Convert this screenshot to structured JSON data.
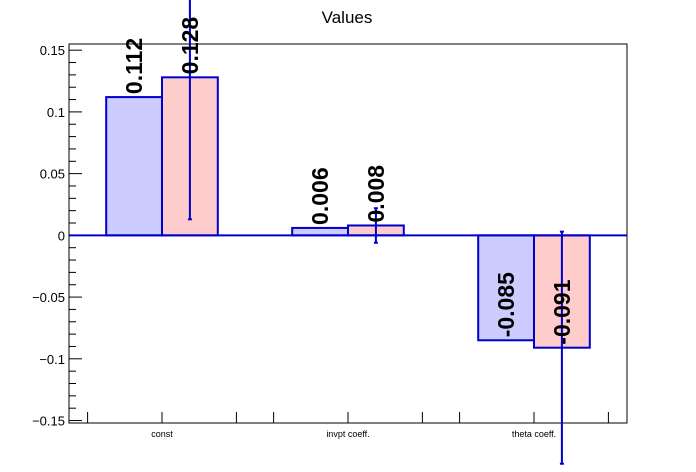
{
  "chart_data": {
    "type": "bar",
    "title": "Values",
    "xlabel": "",
    "ylabel": "",
    "categories": [
      "const",
      "invpt coeff.",
      "theta coeff."
    ],
    "ylim": [
      -0.152,
      0.155
    ],
    "yticks": [
      -0.15,
      -0.1,
      -0.05,
      0,
      0.05,
      0.1,
      0.15
    ],
    "ytick_labels": [
      "−0.15",
      "−0.1",
      "−0.05",
      "0",
      "0.05",
      "0.1",
      "0.15"
    ],
    "grid": false,
    "series": [
      {
        "values": [
          0.112,
          0.006,
          -0.085
        ],
        "labels": [
          "0.112",
          "0.006",
          "-0.085"
        ],
        "errors": [
          0,
          0,
          0
        ],
        "fill": "#ccccff"
      },
      {
        "values": [
          0.128,
          0.008,
          -0.091
        ],
        "labels": [
          "0.128",
          "0.008",
          "-0.091"
        ],
        "errors": [
          0.115,
          0.014,
          0.094
        ],
        "fill": "#ffcccc"
      }
    ],
    "edge_color": "#0000cc"
  }
}
